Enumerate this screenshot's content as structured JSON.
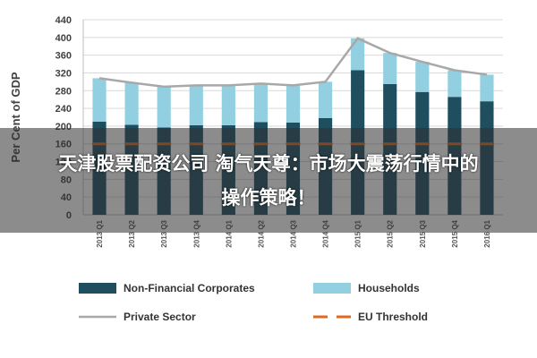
{
  "chart_data": {
    "type": "bar",
    "stacked": true,
    "ylabel": "Per Cent of GDP",
    "ylim": [
      0,
      440
    ],
    "yticks": [
      0,
      40,
      80,
      120,
      160,
      200,
      240,
      280,
      320,
      360,
      400,
      440
    ],
    "grid": true,
    "categories": [
      "2013 Q1",
      "2013 Q2",
      "2013 Q3",
      "2013 Q4",
      "2014 Q1",
      "2014 Q2",
      "2014 Q3",
      "2014 Q4",
      "2015 Q1",
      "2015 Q2",
      "2015 Q3",
      "2015 Q4",
      "2016 Q1"
    ],
    "series": [
      {
        "name": "Non-Financial Corporates",
        "kind": "bar",
        "color": "#1f4e5f",
        "values": [
          210,
          203,
          197,
          202,
          202,
          209,
          208,
          218,
          326,
          295,
          277,
          266,
          256
        ]
      },
      {
        "name": "Households",
        "kind": "bar",
        "color": "#92cfe0",
        "values": [
          98,
          95,
          92,
          90,
          90,
          87,
          84,
          82,
          72,
          70,
          68,
          60,
          60
        ]
      },
      {
        "name": "Private Sector",
        "kind": "line",
        "color": "#a8a8a8",
        "values": [
          308,
          298,
          289,
          292,
          292,
          296,
          292,
          300,
          398,
          365,
          345,
          326,
          316
        ]
      },
      {
        "name": "EU Threshold",
        "kind": "dashed-line",
        "color": "#e06820",
        "values": [
          160,
          160,
          160,
          160,
          160,
          160,
          160,
          160,
          160,
          160,
          160,
          160,
          160
        ]
      }
    ],
    "legend_position": "bottom"
  },
  "overlay": {
    "line1": "天津股票配资公司 淘气天尊：市场大震荡行情中的",
    "line2": "操作策略！"
  }
}
